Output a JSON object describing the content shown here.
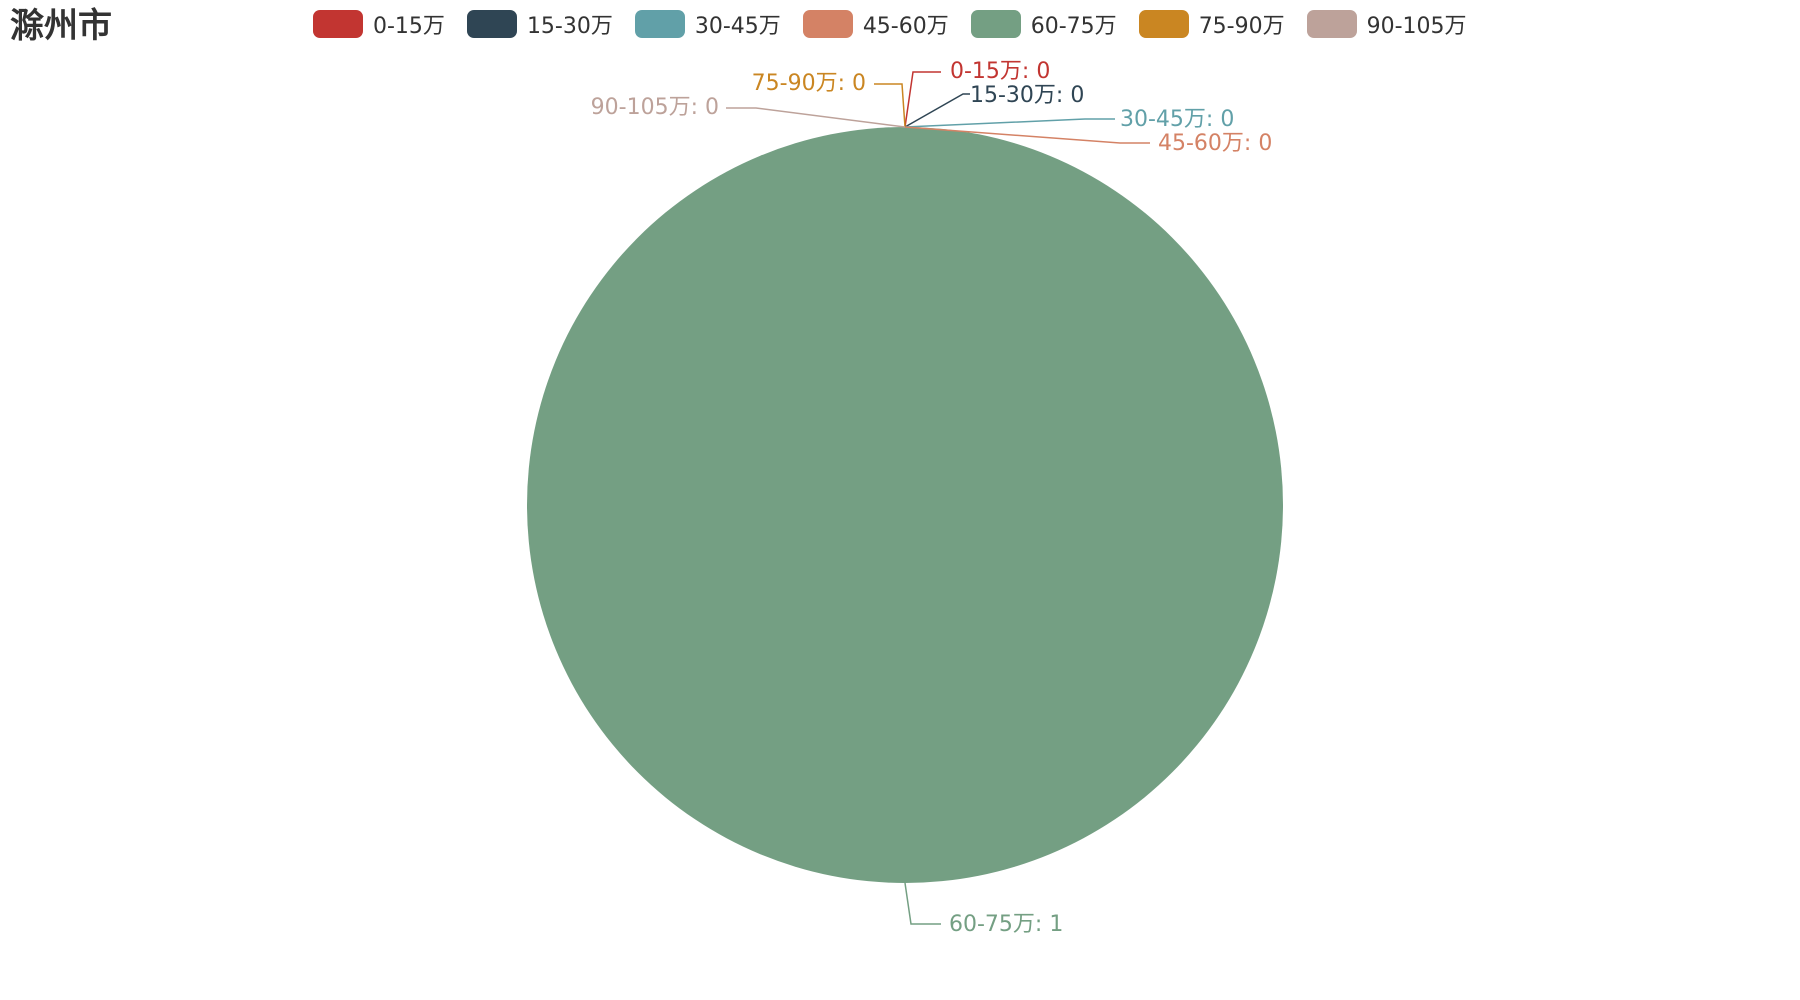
{
  "chart_data": {
    "type": "pie",
    "title": "滁州市",
    "legend_position": "top",
    "categories": [
      "0-15万",
      "15-30万",
      "30-45万",
      "45-60万",
      "60-75万",
      "75-90万",
      "90-105万"
    ],
    "values": [
      0,
      0,
      0,
      0,
      1,
      0,
      0
    ],
    "colors": [
      "#c23531",
      "#2f4554",
      "#61a0a8",
      "#d48265",
      "#749f83",
      "#ca8622",
      "#bda29a"
    ],
    "slice_labels": [
      "0-15万: 0",
      "15-30万: 0",
      "30-45万: 0",
      "45-60万: 0",
      "60-75万: 1",
      "75-90万: 0",
      "90-105万: 0"
    ]
  }
}
